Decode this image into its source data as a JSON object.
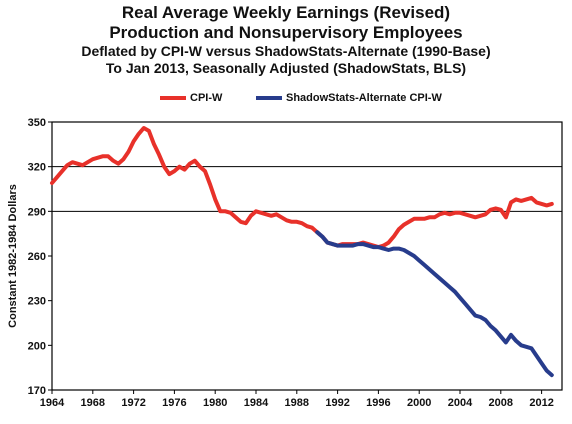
{
  "chart_data": {
    "type": "line",
    "title": "Real Average Weekly Earnings (Revised)",
    "title_line2": "Production and Nonsupervisory Employees",
    "subtitle_line1": "Deflated by CPI-W versus ShadowStats-Alternate (1990-Base)",
    "subtitle_line2": "To Jan 2013, Seasonally Adjusted (ShadowStats, BLS)",
    "ylabel": "Constant 1982-1984 Dollars",
    "xlabel": "",
    "ylim": [
      170,
      350
    ],
    "xlim": [
      1964,
      2014
    ],
    "x_ticks": [
      1964,
      1968,
      1972,
      1976,
      1980,
      1984,
      1988,
      1992,
      1996,
      2000,
      2004,
      2008,
      2012
    ],
    "x_tick_labels": [
      "1964",
      "1968",
      "1972",
      "1976",
      "1980",
      "1984",
      "1988",
      "1992",
      "1996",
      "2000",
      "2004",
      "2008",
      "2012"
    ],
    "y_ticks": [
      170,
      200,
      230,
      260,
      290,
      320,
      350
    ],
    "y_tick_labels": [
      "170",
      "200",
      "230",
      "260",
      "290",
      "320",
      "350"
    ],
    "gridlines_y": [
      290,
      320
    ],
    "legend_position": "top-center",
    "series": [
      {
        "name": "CPI-W",
        "color": "#e8312a",
        "points": [
          [
            1964.0,
            309
          ],
          [
            1964.5,
            313
          ],
          [
            1965.0,
            317
          ],
          [
            1965.5,
            321
          ],
          [
            1966.0,
            323
          ],
          [
            1966.5,
            322
          ],
          [
            1967.0,
            321
          ],
          [
            1967.5,
            323
          ],
          [
            1968.0,
            325
          ],
          [
            1968.5,
            326
          ],
          [
            1969.0,
            327
          ],
          [
            1969.5,
            327
          ],
          [
            1970.0,
            324
          ],
          [
            1970.5,
            322
          ],
          [
            1971.0,
            325
          ],
          [
            1971.5,
            330
          ],
          [
            1972.0,
            337
          ],
          [
            1972.5,
            342
          ],
          [
            1973.0,
            346
          ],
          [
            1973.5,
            344
          ],
          [
            1974.0,
            335
          ],
          [
            1974.5,
            328
          ],
          [
            1975.0,
            320
          ],
          [
            1975.5,
            315
          ],
          [
            1976.0,
            317
          ],
          [
            1976.5,
            320
          ],
          [
            1977.0,
            318
          ],
          [
            1977.5,
            322
          ],
          [
            1978.0,
            324
          ],
          [
            1978.5,
            320
          ],
          [
            1979.0,
            317
          ],
          [
            1979.5,
            308
          ],
          [
            1980.0,
            298
          ],
          [
            1980.5,
            290
          ],
          [
            1981.0,
            290
          ],
          [
            1981.5,
            289
          ],
          [
            1982.0,
            286
          ],
          [
            1982.5,
            283
          ],
          [
            1983.0,
            282
          ],
          [
            1983.5,
            287
          ],
          [
            1984.0,
            290
          ],
          [
            1984.5,
            289
          ],
          [
            1985.0,
            288
          ],
          [
            1985.5,
            287
          ],
          [
            1986.0,
            288
          ],
          [
            1986.5,
            286
          ],
          [
            1987.0,
            284
          ],
          [
            1987.5,
            283
          ],
          [
            1988.0,
            283
          ],
          [
            1988.5,
            282
          ],
          [
            1989.0,
            280
          ],
          [
            1989.5,
            279
          ],
          [
            1990.0,
            276
          ],
          [
            1990.5,
            273
          ],
          [
            1991.0,
            269
          ],
          [
            1991.5,
            268
          ],
          [
            1992.0,
            267
          ],
          [
            1992.5,
            268
          ],
          [
            1993.0,
            268
          ],
          [
            1993.5,
            268
          ],
          [
            1994.0,
            268
          ],
          [
            1994.5,
            269
          ],
          [
            1995.0,
            268
          ],
          [
            1995.5,
            267
          ],
          [
            1996.0,
            266
          ],
          [
            1996.5,
            267
          ],
          [
            1997.0,
            269
          ],
          [
            1997.5,
            273
          ],
          [
            1998.0,
            278
          ],
          [
            1998.5,
            281
          ],
          [
            1999.0,
            283
          ],
          [
            1999.5,
            285
          ],
          [
            2000.0,
            285
          ],
          [
            2000.5,
            285
          ],
          [
            2001.0,
            286
          ],
          [
            2001.5,
            286
          ],
          [
            2002.0,
            288
          ],
          [
            2002.5,
            289
          ],
          [
            2003.0,
            288
          ],
          [
            2003.5,
            289
          ],
          [
            2004.0,
            289
          ],
          [
            2004.5,
            288
          ],
          [
            2005.0,
            287
          ],
          [
            2005.5,
            286
          ],
          [
            2006.0,
            287
          ],
          [
            2006.5,
            288
          ],
          [
            2007.0,
            291
          ],
          [
            2007.5,
            292
          ],
          [
            2008.0,
            291
          ],
          [
            2008.5,
            286
          ],
          [
            2009.0,
            296
          ],
          [
            2009.5,
            298
          ],
          [
            2010.0,
            297
          ],
          [
            2010.5,
            298
          ],
          [
            2011.0,
            299
          ],
          [
            2011.5,
            296
          ],
          [
            2012.0,
            295
          ],
          [
            2012.5,
            294
          ],
          [
            2013.0,
            295
          ]
        ]
      },
      {
        "name": "ShadowStats-Alternate CPI-W",
        "color": "#273c8c",
        "points": [
          [
            1990.0,
            276
          ],
          [
            1990.5,
            273
          ],
          [
            1991.0,
            269
          ],
          [
            1991.5,
            268
          ],
          [
            1992.0,
            267
          ],
          [
            1992.5,
            267
          ],
          [
            1993.0,
            267
          ],
          [
            1993.5,
            267
          ],
          [
            1994.0,
            268
          ],
          [
            1994.5,
            268
          ],
          [
            1995.0,
            267
          ],
          [
            1995.5,
            266
          ],
          [
            1996.0,
            266
          ],
          [
            1996.5,
            265
          ],
          [
            1997.0,
            264
          ],
          [
            1997.5,
            265
          ],
          [
            1998.0,
            265
          ],
          [
            1998.5,
            264
          ],
          [
            1999.0,
            262
          ],
          [
            1999.5,
            260
          ],
          [
            2000.0,
            257
          ],
          [
            2000.5,
            254
          ],
          [
            2001.0,
            251
          ],
          [
            2001.5,
            248
          ],
          [
            2002.0,
            245
          ],
          [
            2002.5,
            242
          ],
          [
            2003.0,
            239
          ],
          [
            2003.5,
            236
          ],
          [
            2004.0,
            232
          ],
          [
            2004.5,
            228
          ],
          [
            2005.0,
            224
          ],
          [
            2005.5,
            220
          ],
          [
            2006.0,
            219
          ],
          [
            2006.5,
            217
          ],
          [
            2007.0,
            213
          ],
          [
            2007.5,
            210
          ],
          [
            2008.0,
            206
          ],
          [
            2008.5,
            202
          ],
          [
            2009.0,
            207
          ],
          [
            2009.5,
            203
          ],
          [
            2010.0,
            200
          ],
          [
            2010.5,
            199
          ],
          [
            2011.0,
            198
          ],
          [
            2011.5,
            193
          ],
          [
            2012.0,
            188
          ],
          [
            2012.5,
            183
          ],
          [
            2013.0,
            180
          ]
        ]
      }
    ]
  }
}
